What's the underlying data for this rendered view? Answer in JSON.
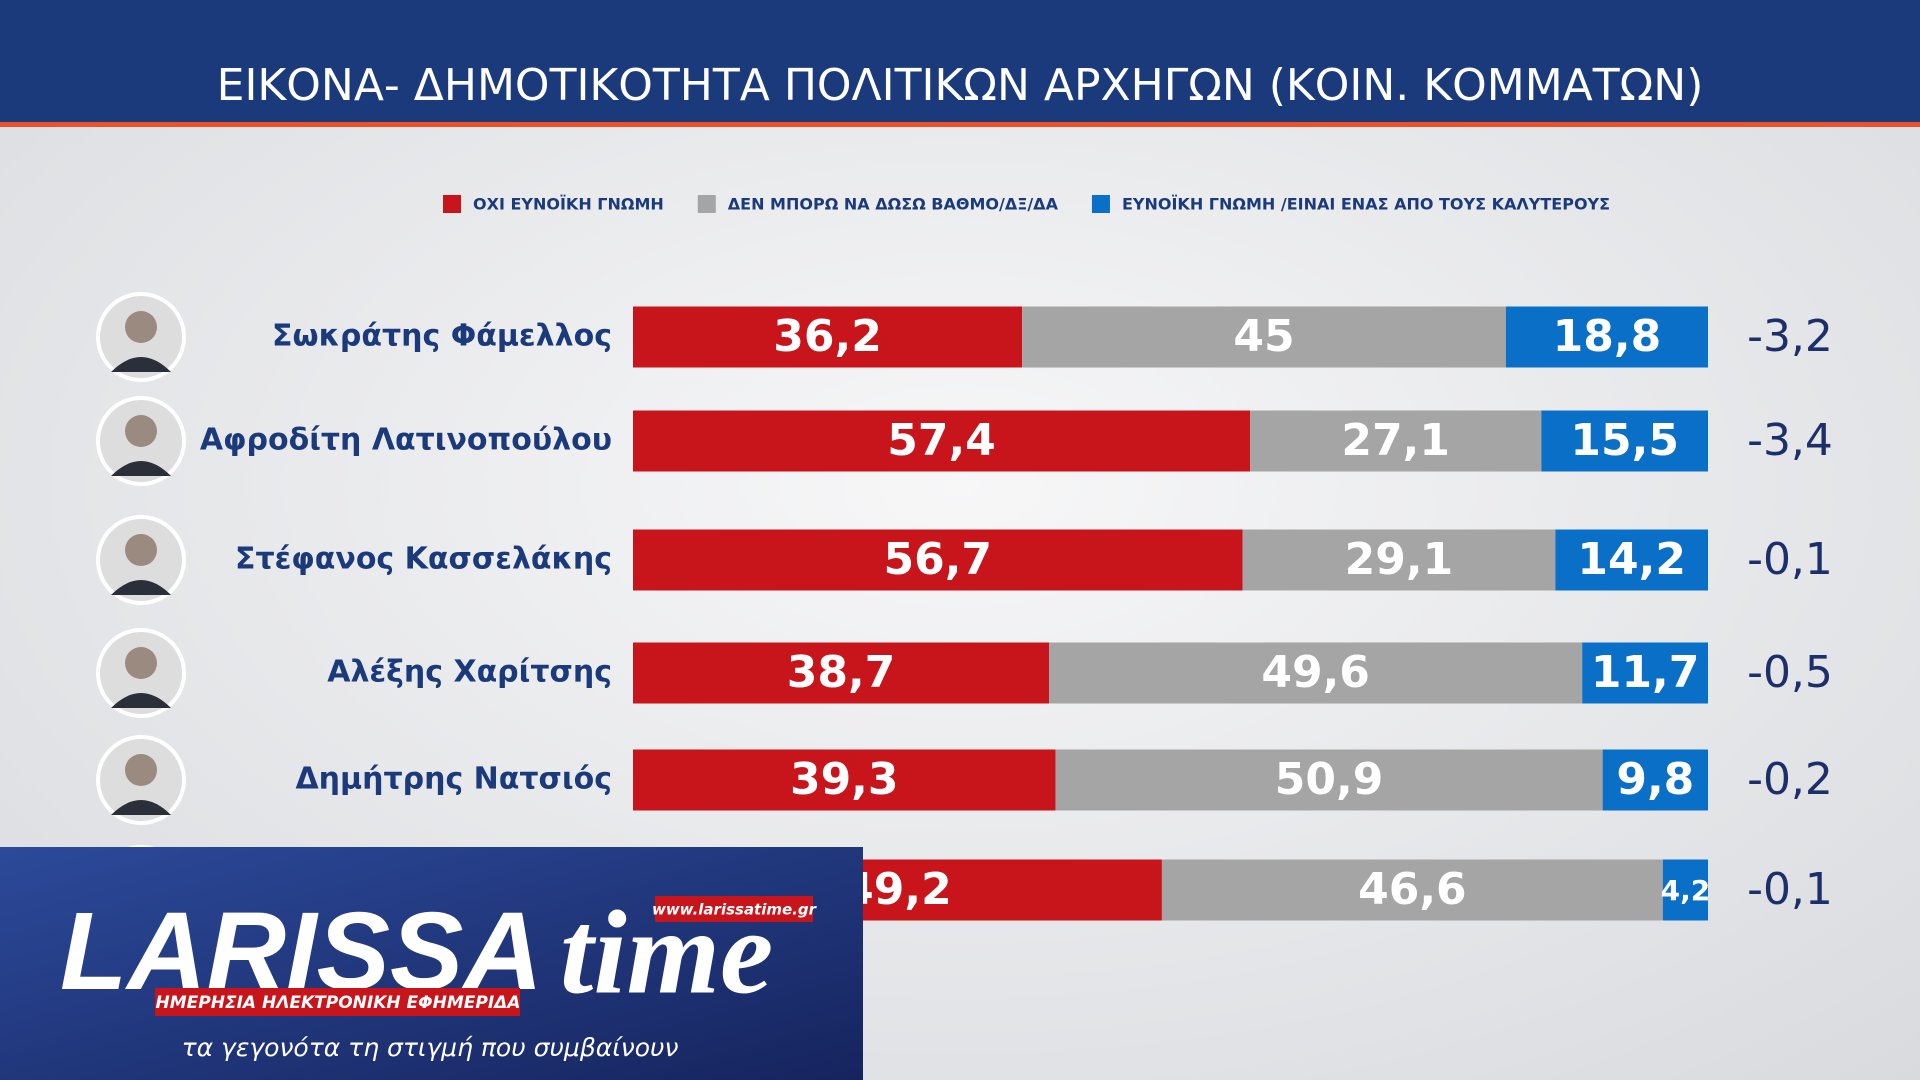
{
  "chart_data": {
    "type": "stacked-bar",
    "title": "ΕΙΚΟΝΑ- ΔΗΜΟΤΙΚΟΤΗΤΑ ΠΟΛΙΤΙΚΩΝ ΑΡΧΗΓΩΝ (ΚΟΙΝ. ΚΟΜΜΑΤΩΝ)",
    "categories": [
      "Σωκράτης Φάμελλος",
      "Αφροδίτη Λατινοπούλου",
      "Στέφανος Κασσελάκης",
      "Αλέξης Χαρίτσης",
      "Δημήτρης Νατσιός",
      null
    ],
    "series": [
      {
        "name": "ΟΧΙ ΕΥΝΟΪΚΗ ΓΝΩΜΗ",
        "color": "#c8151b",
        "values": [
          36.2,
          57.4,
          56.7,
          38.7,
          39.3,
          49.2
        ],
        "value_labels": [
          "36,2",
          "57,4",
          "56,7",
          "38,7",
          "39,3",
          "49,2"
        ]
      },
      {
        "name": "ΔΕΝ ΜΠΟΡΩ ΝΑ ΔΩΣΩ ΒΑΘΜΟ/ΔΞ/ΔΑ",
        "color": "#a5a5a5",
        "values": [
          45,
          27.1,
          29.1,
          49.6,
          50.9,
          46.6
        ],
        "value_labels": [
          "45",
          "27,1",
          "29,1",
          "49,6",
          "50,9",
          "46,6"
        ]
      },
      {
        "name": "ΕΥΝΟΪΚΗ ΓΝΩΜΗ /ΕΙΝΑΙ ΕΝΑΣ ΑΠΟ ΤΟΥΣ ΚΑΛΥΤΕΡΟΥΣ",
        "color": "#0a6fc7",
        "values": [
          18.8,
          15.5,
          14.2,
          11.7,
          9.8,
          4.2
        ],
        "value_labels": [
          "18,8",
          "15,5",
          "14,2",
          "11,7",
          "9,8",
          "4,2"
        ]
      }
    ],
    "changes": [
      "-3,2",
      "-3,4",
      "-0,1",
      "-0,5",
      "-0,2",
      "-0,1"
    ],
    "xlim": [
      0,
      100
    ]
  },
  "watermark": {
    "brand_left": "LARISSA",
    "brand_right": "time",
    "url": "www.larissatime.gr",
    "tagline": "ΗΜΕΡΗΣΙΑ ΗΛΕΚΤΡΟΝΙΚΗ ΕΦΗΜΕΡΙΔΑ",
    "slogan": "τα γεγονότα τη στιγμή που συμβαίνουν"
  }
}
